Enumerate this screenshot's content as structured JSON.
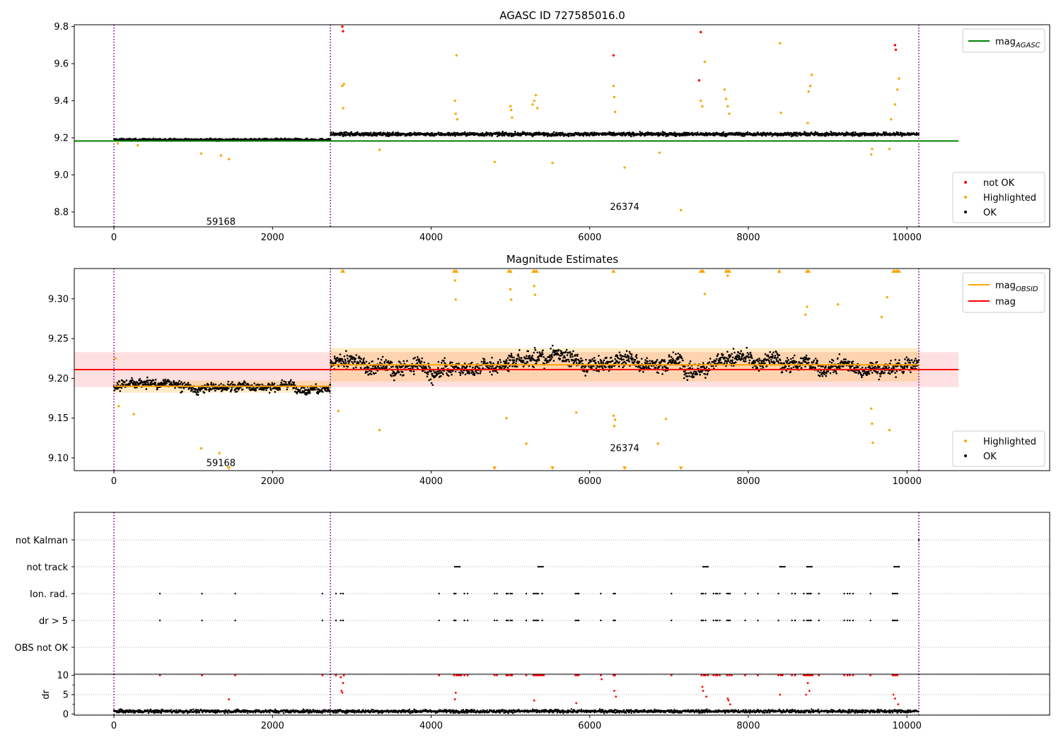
{
  "chart_data": [
    {
      "type": "scatter",
      "title": "AGASC ID 727585016.0",
      "xlim": [
        -500,
        11800
      ],
      "ylim": [
        8.72,
        9.81
      ],
      "xticks": [
        0,
        2000,
        4000,
        6000,
        8000,
        10000
      ],
      "yticks": [
        8.8,
        9.0,
        9.2,
        9.4,
        9.6,
        9.8
      ],
      "ytick_labels": [
        "8.8",
        "9.0",
        "9.2",
        "9.4",
        "9.6",
        "9.8"
      ],
      "grid": false,
      "obsid_boundaries": [
        0,
        2730,
        10150
      ],
      "obsid_annotations": [
        {
          "x": 1350,
          "y": 8.75,
          "text": "59168"
        },
        {
          "x": 6440,
          "y": 8.83,
          "text": "26374"
        }
      ],
      "reference_lines": [
        {
          "name": "mag_AGASC",
          "name_main": "mag",
          "name_sub": "AGASC",
          "y": 9.183,
          "x": [
            -500,
            10650
          ],
          "color": "#008000"
        }
      ],
      "segments": [
        {
          "x": [
            0,
            2730
          ],
          "level": 9.19,
          "spread": 0.01
        },
        {
          "x": [
            2730,
            10150
          ],
          "level": 9.22,
          "spread": 0.016
        }
      ],
      "series": [
        {
          "name": "not OK",
          "color": "#ff0000",
          "points": [
            [
              2880,
              9.8
            ],
            [
              2890,
              9.775
            ],
            [
              6300,
              9.645
            ],
            [
              7380,
              9.51
            ],
            [
              7400,
              9.77
            ],
            [
              9850,
              9.7
            ],
            [
              9860,
              9.675
            ]
          ]
        },
        {
          "name": "Highlighted",
          "color": "#ffa500",
          "points": [
            [
              50,
              9.17
            ],
            [
              300,
              9.16
            ],
            [
              1100,
              9.115
            ],
            [
              1350,
              9.105
            ],
            [
              1450,
              9.085
            ],
            [
              2880,
              9.48
            ],
            [
              2890,
              9.36
            ],
            [
              2900,
              9.49
            ],
            [
              3350,
              9.135
            ],
            [
              4300,
              9.4
            ],
            [
              4310,
              9.33
            ],
            [
              4320,
              9.645
            ],
            [
              4330,
              9.3
            ],
            [
              4800,
              9.07
            ],
            [
              5000,
              9.37
            ],
            [
              5010,
              9.35
            ],
            [
              5020,
              9.31
            ],
            [
              5280,
              9.38
            ],
            [
              5300,
              9.4
            ],
            [
              5320,
              9.43
            ],
            [
              5340,
              9.36
            ],
            [
              5530,
              9.065
            ],
            [
              6300,
              9.48
            ],
            [
              6310,
              9.42
            ],
            [
              6320,
              9.34
            ],
            [
              6440,
              9.04
            ],
            [
              6880,
              9.12
            ],
            [
              7150,
              8.81
            ],
            [
              7400,
              9.4
            ],
            [
              7420,
              9.37
            ],
            [
              7450,
              9.61
            ],
            [
              7700,
              9.46
            ],
            [
              7720,
              9.41
            ],
            [
              7740,
              9.37
            ],
            [
              7760,
              9.33
            ],
            [
              8400,
              9.71
            ],
            [
              8410,
              9.335
            ],
            [
              8750,
              9.28
            ],
            [
              8760,
              9.45
            ],
            [
              8780,
              9.48
            ],
            [
              8800,
              9.54
            ],
            [
              9550,
              9.11
            ],
            [
              9560,
              9.14
            ],
            [
              9850,
              9.38
            ],
            [
              9880,
              9.46
            ],
            [
              9900,
              9.52
            ],
            [
              9800,
              9.3
            ],
            [
              9780,
              9.14
            ]
          ]
        }
      ],
      "ok_series_name": "OK",
      "legend": [
        {
          "label": "not OK",
          "color": "#ff0000"
        },
        {
          "label": "Highlighted",
          "color": "#ffa500"
        },
        {
          "label": "OK",
          "color": "#000000"
        }
      ],
      "legend_placement": "lower-right",
      "line_legend_placement": "upper-right"
    },
    {
      "type": "scatter",
      "title": "Magnitude Estimates",
      "xlim": [
        -500,
        11800
      ],
      "ylim": [
        9.084,
        9.338
      ],
      "xticks": [
        0,
        2000,
        4000,
        6000,
        8000,
        10000
      ],
      "yticks": [
        9.1,
        9.15,
        9.2,
        9.25,
        9.3
      ],
      "ytick_labels": [
        "9.10",
        "9.15",
        "9.20",
        "9.25",
        "9.30"
      ],
      "grid": false,
      "obsid_boundaries": [
        0,
        2730,
        10150
      ],
      "obsid_annotations": [
        {
          "x": 1350,
          "y": 9.094,
          "text": "59168"
        },
        {
          "x": 6440,
          "y": 9.113,
          "text": "26374"
        }
      ],
      "reference_lines": [
        {
          "name": "mag_OBSID",
          "name_main": "mag",
          "name_sub": "OBSID",
          "color": "#ffa500",
          "segments": [
            {
              "x": [
                0,
                2730
              ],
              "y": 9.19
            },
            {
              "x": [
                2730,
                10150
              ],
              "y": 9.217
            }
          ]
        },
        {
          "name": "mag",
          "name_main": "mag",
          "name_sub": "",
          "color": "#ff0000",
          "y": 9.211,
          "x": [
            -500,
            10650
          ]
        }
      ],
      "bands": [
        {
          "color": "#ff0000",
          "opacity": 0.12,
          "x": [
            -500,
            10650
          ],
          "y": [
            9.189,
            9.233
          ]
        },
        {
          "color": "#ffa500",
          "opacity": 0.22,
          "x": [
            0,
            2730
          ],
          "y": [
            9.182,
            9.197
          ]
        },
        {
          "color": "#ffa500",
          "opacity": 0.22,
          "x": [
            2730,
            10150
          ],
          "y": [
            9.196,
            9.238
          ]
        }
      ],
      "segments": [
        {
          "x": [
            0,
            2730
          ],
          "level": 9.19,
          "spread": 0.009
        },
        {
          "x": [
            2730,
            10150
          ],
          "level": 9.218,
          "spread": 0.016
        }
      ],
      "series": [
        {
          "name": "Highlighted",
          "color": "#ffa500",
          "points": [
            [
              20,
              9.225
            ],
            [
              60,
              9.165
            ],
            [
              250,
              9.155
            ],
            [
              1100,
              9.112
            ],
            [
              1330,
              9.106
            ],
            [
              2830,
              9.159
            ],
            [
              3350,
              9.135
            ],
            [
              4300,
              9.323
            ],
            [
              4310,
              9.299
            ],
            [
              4950,
              9.15
            ],
            [
              5000,
              9.312
            ],
            [
              5010,
              9.299
            ],
            [
              5200,
              9.118
            ],
            [
              5300,
              9.316
            ],
            [
              5310,
              9.305
            ],
            [
              5830,
              9.157
            ],
            [
              6300,
              9.153
            ],
            [
              6310,
              9.14
            ],
            [
              6320,
              9.148
            ],
            [
              6860,
              9.118
            ],
            [
              6960,
              9.149
            ],
            [
              7450,
              9.306
            ],
            [
              7740,
              9.329
            ],
            [
              8740,
              9.29
            ],
            [
              8720,
              9.28
            ],
            [
              9130,
              9.293
            ],
            [
              9550,
              9.162
            ],
            [
              9560,
              9.143
            ],
            [
              9570,
              9.119
            ],
            [
              9750,
              9.302
            ],
            [
              9780,
              9.135
            ],
            [
              9680,
              9.277
            ]
          ]
        }
      ],
      "clipped_markers": {
        "top": [
          2880,
          2890,
          4290,
          4300,
          4320,
          4980,
          5000,
          5290,
          5310,
          5330,
          6300,
          7400,
          7420,
          7430,
          7720,
          7740,
          7760,
          8390,
          8740,
          8760,
          9830,
          9850,
          9870,
          9880,
          9900
        ],
        "bottom": [
          1450,
          4800,
          5530,
          6440,
          7150
        ]
      },
      "ok_series_name": "OK",
      "legend": [
        {
          "label": "Highlighted",
          "color": "#ffa500"
        },
        {
          "label": "OK",
          "color": "#000000"
        }
      ],
      "legend_placement": "lower-right",
      "line_legend_placement": "upper-right"
    },
    {
      "type": "scatter",
      "title": "",
      "xlim": [
        -500,
        11800
      ],
      "categories": [
        "not Kalman",
        "not track",
        "Ion. rad.",
        "dr > 5",
        "OBS not OK"
      ],
      "grid": true,
      "obsid_boundaries": [
        0,
        2730,
        10150
      ],
      "flags": {
        "not Kalman": [
          10150
        ],
        "not track": [
          4300,
          4320,
          4340,
          4360,
          5350,
          5370,
          5390,
          5410,
          7430,
          7450,
          7470,
          7490,
          8400,
          8420,
          8440,
          8460,
          8740,
          8760,
          8780,
          8800,
          9840,
          9860,
          9880,
          9900
        ],
        "Ion. rad.": [
          580,
          1110,
          1530,
          2630,
          2800,
          2860,
          2890,
          4100,
          4290,
          4310,
          4420,
          4460,
          4800,
          4830,
          4950,
          4970,
          5000,
          5020,
          5200,
          5290,
          5310,
          5330,
          5350,
          5400,
          5820,
          5840,
          5860,
          6140,
          6300,
          6320,
          7030,
          7410,
          7430,
          7460,
          7560,
          7590,
          7610,
          7640,
          7730,
          7750,
          7770,
          7960,
          8120,
          8380,
          8550,
          8590,
          8700,
          8740,
          8760,
          8780,
          8790,
          8890,
          9210,
          9250,
          9280,
          9320,
          9540,
          9820,
          9840,
          9860,
          9880
        ],
        "dr > 5": [
          580,
          1110,
          1530,
          2630,
          2800,
          2860,
          2890,
          4100,
          4290,
          4310,
          4420,
          4460,
          4800,
          4830,
          4950,
          4970,
          5000,
          5020,
          5200,
          5290,
          5310,
          5330,
          5350,
          5400,
          5820,
          5840,
          5860,
          6140,
          6300,
          6320,
          7030,
          7410,
          7430,
          7460,
          7560,
          7590,
          7610,
          7640,
          7730,
          7750,
          7770,
          7960,
          8120,
          8380,
          8550,
          8590,
          8700,
          8740,
          8760,
          8780,
          8790,
          8890,
          9210,
          9250,
          9280,
          9320,
          9540,
          9820,
          9840,
          9860,
          9880
        ],
        "OBS not OK": []
      }
    },
    {
      "type": "scatter",
      "title": "",
      "xlim": [
        -500,
        11800
      ],
      "ylim": [
        -0.3,
        10.3
      ],
      "xticks": [
        0,
        2000,
        4000,
        6000,
        8000,
        10000
      ],
      "yticks": [
        0,
        5,
        10
      ],
      "ytick_labels": [
        "0",
        "5",
        "10"
      ],
      "minor_yticks": [
        2.5,
        7.5
      ],
      "ylabel": "dr",
      "grid": true,
      "threshold": 5,
      "cap": 10,
      "baseline": {
        "level": 0.7,
        "spread": 0.45
      },
      "red_points": [
        [
          580,
          10
        ],
        [
          1110,
          10
        ],
        [
          1450,
          3.8
        ],
        [
          1530,
          10
        ],
        [
          2630,
          10
        ],
        [
          2800,
          10
        ],
        [
          2860,
          9.5
        ],
        [
          2870,
          6
        ],
        [
          2880,
          5.5
        ],
        [
          2890,
          8
        ],
        [
          2900,
          10
        ],
        [
          4100,
          10
        ],
        [
          4290,
          10
        ],
        [
          4300,
          3.8
        ],
        [
          4310,
          5.5
        ],
        [
          4320,
          10
        ],
        [
          4340,
          10
        ],
        [
          4360,
          10
        ],
        [
          4380,
          10
        ],
        [
          4420,
          10
        ],
        [
          4460,
          10
        ],
        [
          4800,
          10
        ],
        [
          4830,
          10
        ],
        [
          4950,
          10
        ],
        [
          4970,
          10
        ],
        [
          5000,
          10
        ],
        [
          5020,
          10
        ],
        [
          5200,
          10
        ],
        [
          5290,
          10
        ],
        [
          5300,
          3.5
        ],
        [
          5310,
          10
        ],
        [
          5330,
          10
        ],
        [
          5350,
          10
        ],
        [
          5370,
          10
        ],
        [
          5390,
          10
        ],
        [
          5400,
          10
        ],
        [
          5420,
          10
        ],
        [
          5820,
          10
        ],
        [
          5830,
          2.8
        ],
        [
          5840,
          10
        ],
        [
          5860,
          10
        ],
        [
          6140,
          10
        ],
        [
          6150,
          9
        ],
        [
          6300,
          10
        ],
        [
          6310,
          6
        ],
        [
          6320,
          10
        ],
        [
          6330,
          4.5
        ],
        [
          7030,
          10
        ],
        [
          7410,
          10
        ],
        [
          7420,
          7
        ],
        [
          7430,
          6
        ],
        [
          7440,
          10
        ],
        [
          7460,
          10
        ],
        [
          7470,
          4.5
        ],
        [
          7490,
          10
        ],
        [
          7560,
          10
        ],
        [
          7590,
          10
        ],
        [
          7610,
          10
        ],
        [
          7640,
          10
        ],
        [
          7730,
          10
        ],
        [
          7740,
          4
        ],
        [
          7750,
          3.5
        ],
        [
          7760,
          10
        ],
        [
          7770,
          2.5
        ],
        [
          7790,
          10
        ],
        [
          7960,
          10
        ],
        [
          8120,
          10
        ],
        [
          8380,
          10
        ],
        [
          8400,
          5
        ],
        [
          8410,
          10
        ],
        [
          8430,
          10
        ],
        [
          8550,
          10
        ],
        [
          8590,
          10
        ],
        [
          8700,
          10
        ],
        [
          8720,
          10
        ],
        [
          8730,
          5
        ],
        [
          8740,
          10
        ],
        [
          8750,
          8
        ],
        [
          8760,
          10
        ],
        [
          8770,
          6
        ],
        [
          8780,
          10
        ],
        [
          8790,
          10
        ],
        [
          8810,
          10
        ],
        [
          8890,
          10
        ],
        [
          9210,
          10
        ],
        [
          9250,
          10
        ],
        [
          9280,
          10
        ],
        [
          9320,
          10
        ],
        [
          9540,
          10
        ],
        [
          9820,
          10
        ],
        [
          9830,
          5
        ],
        [
          9840,
          10
        ],
        [
          9850,
          4
        ],
        [
          9860,
          10
        ],
        [
          9880,
          10
        ],
        [
          9890,
          2.5
        ]
      ]
    }
  ]
}
